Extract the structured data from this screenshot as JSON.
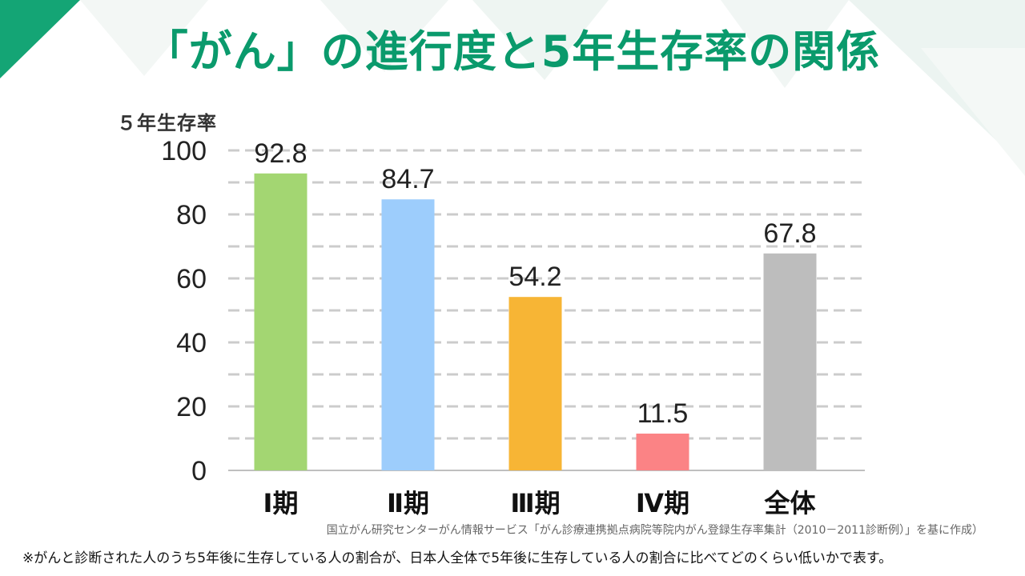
{
  "title": "「がん」の進行度と5年生存率の関係",
  "colors": {
    "title": "#0a9a6c",
    "accent_triangle": "#14a575",
    "grid": "#cccccc"
  },
  "chart_data": {
    "type": "bar",
    "ylabel": "５年生存率",
    "xlabel": "",
    "ylim": [
      0,
      100
    ],
    "yticks": [
      0,
      20,
      40,
      60,
      80,
      100
    ],
    "grid": true,
    "categories": [
      "Ⅰ期",
      "Ⅱ期",
      "Ⅲ期",
      "Ⅳ期",
      "全体"
    ],
    "values": [
      92.8,
      84.7,
      54.2,
      11.5,
      67.8
    ],
    "value_labels": [
      "92.8",
      "84.7",
      "54.2",
      "11.5",
      "67.8"
    ],
    "bar_colors": [
      "#a3d672",
      "#9dcdfc",
      "#f7b535",
      "#fb8385",
      "#bdbdbd"
    ]
  },
  "source": "国立がん研究センターがん情報サービス「がん診療連携拠点病院等院内がん登録生存率集計（2010－2011診断例）」を基に作成）",
  "note": "※がんと診断された人のうち5年後に生存している人の割合が、日本人全体で5年後に生存している人の割合に比べてどのくらい低いかで表す。"
}
